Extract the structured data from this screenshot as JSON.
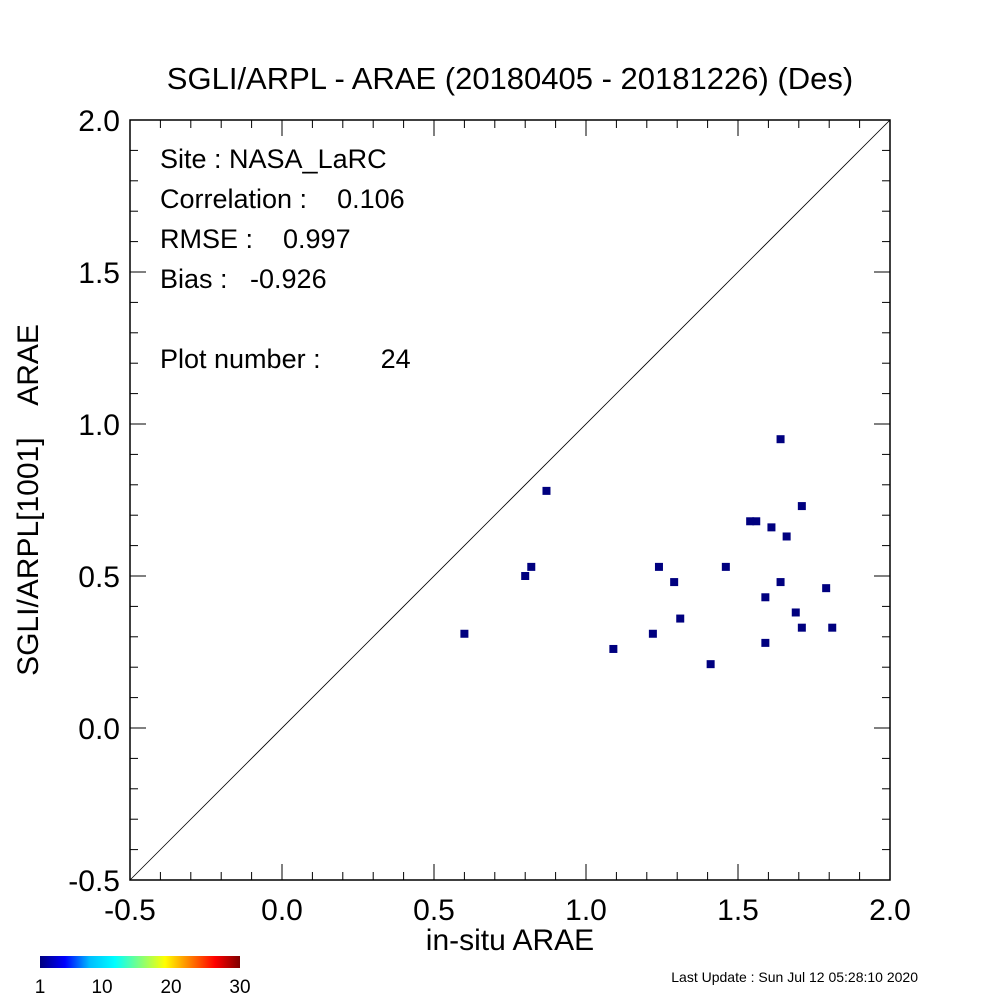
{
  "chart_data": {
    "type": "scatter",
    "title": "SGLI/ARPL - ARAE (20180405 - 20181226) (Des)",
    "xlabel": "in-situ ARAE",
    "ylabel": "SGLI/ARPL[1001]    ARAE",
    "xlim": [
      -0.5,
      2.0
    ],
    "ylim": [
      -0.5,
      2.0
    ],
    "xticks": [
      "-0.5",
      "0.0",
      "0.5",
      "1.0",
      "1.5",
      "2.0"
    ],
    "yticks": [
      "-0.5",
      "0.0",
      "0.5",
      "1.0",
      "1.5",
      "2.0"
    ],
    "reference_line": "1:1",
    "grid": false,
    "point_color": "#00007f",
    "points": [
      {
        "x": 0.6,
        "y": 0.31
      },
      {
        "x": 0.8,
        "y": 0.5
      },
      {
        "x": 0.82,
        "y": 0.53
      },
      {
        "x": 0.87,
        "y": 0.78
      },
      {
        "x": 1.09,
        "y": 0.26
      },
      {
        "x": 1.22,
        "y": 0.31
      },
      {
        "x": 1.24,
        "y": 0.53
      },
      {
        "x": 1.29,
        "y": 0.48
      },
      {
        "x": 1.31,
        "y": 0.36
      },
      {
        "x": 1.41,
        "y": 0.21
      },
      {
        "x": 1.46,
        "y": 0.53
      },
      {
        "x": 1.54,
        "y": 0.68
      },
      {
        "x": 1.56,
        "y": 0.68
      },
      {
        "x": 1.59,
        "y": 0.43
      },
      {
        "x": 1.59,
        "y": 0.28
      },
      {
        "x": 1.61,
        "y": 0.66
      },
      {
        "x": 1.64,
        "y": 0.95
      },
      {
        "x": 1.64,
        "y": 0.48
      },
      {
        "x": 1.66,
        "y": 0.63
      },
      {
        "x": 1.69,
        "y": 0.38
      },
      {
        "x": 1.71,
        "y": 0.73
      },
      {
        "x": 1.71,
        "y": 0.33
      },
      {
        "x": 1.79,
        "y": 0.46
      },
      {
        "x": 1.81,
        "y": 0.33
      }
    ],
    "stats": {
      "site": "Site : NASA_LaRC",
      "correlation": "Correlation :    0.106",
      "rmse": "RMSE :    0.997",
      "bias": "Bias :   -0.926",
      "plot_number": "Plot number :        24"
    },
    "colorbar": {
      "ticks": [
        "1",
        "10",
        "20",
        "30"
      ],
      "min": 1,
      "max": 30,
      "colors": [
        "#00007f",
        "#0000ff",
        "#00bfff",
        "#00ffff",
        "#7fff7f",
        "#ffff00",
        "#ff7f00",
        "#ff0000",
        "#7f0000"
      ]
    }
  },
  "footer": {
    "last_update": "Last Update : Sun Jul 12 05:28:10 2020"
  }
}
